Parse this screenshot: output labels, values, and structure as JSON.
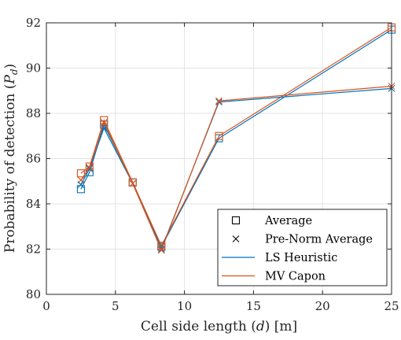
{
  "chart_data": {
    "type": "line",
    "xlabel": "Cell side length (d) [m]",
    "xlabel_parts": {
      "pre": "Cell side length (",
      "var": "d",
      "post": ") [m]"
    },
    "ylabel": "Probability of detection (P_d)",
    "ylabel_parts": {
      "pre": "Probability of detection (",
      "var": "P",
      "sub": "d",
      "post": ")"
    },
    "xlim": [
      0,
      25
    ],
    "ylim": [
      80,
      92
    ],
    "xticks": [
      0,
      5,
      10,
      15,
      20,
      25
    ],
    "yticks": [
      80,
      82,
      84,
      86,
      88,
      90,
      92
    ],
    "grid": true,
    "legend_position": "bottom-right",
    "legend": [
      {
        "label": "Average",
        "kind": "marker",
        "marker": "square"
      },
      {
        "label": "Pre-Norm Average",
        "kind": "marker",
        "marker": "x"
      },
      {
        "label": "LS Heuristic",
        "kind": "line",
        "color": "#0072BD"
      },
      {
        "label": "MV Capon",
        "kind": "line",
        "color": "#D95319"
      }
    ],
    "x": [
      2.5,
      3.125,
      4.17,
      6.25,
      8.33,
      12.5,
      25
    ],
    "series": [
      {
        "method": "LS Heuristic",
        "aggregation": "Average",
        "color": "#0072BD",
        "marker": "square",
        "values": [
          84.65,
          85.4,
          87.5,
          84.95,
          82.1,
          86.9,
          91.7
        ]
      },
      {
        "method": "MV Capon",
        "aggregation": "Average",
        "color": "#D95319",
        "marker": "square",
        "values": [
          85.35,
          85.65,
          87.7,
          84.95,
          82.15,
          87.0,
          91.8
        ]
      },
      {
        "method": "LS Heuristic",
        "aggregation": "Pre-Norm Average",
        "color": "#0072BD",
        "marker": "x",
        "values": [
          84.85,
          85.55,
          87.35,
          84.9,
          82.0,
          88.5,
          89.1
        ]
      },
      {
        "method": "MV Capon",
        "aggregation": "Pre-Norm Average",
        "color": "#D95319",
        "marker": "x",
        "values": [
          85.05,
          85.6,
          87.6,
          84.9,
          81.95,
          88.55,
          89.2
        ]
      }
    ]
  }
}
